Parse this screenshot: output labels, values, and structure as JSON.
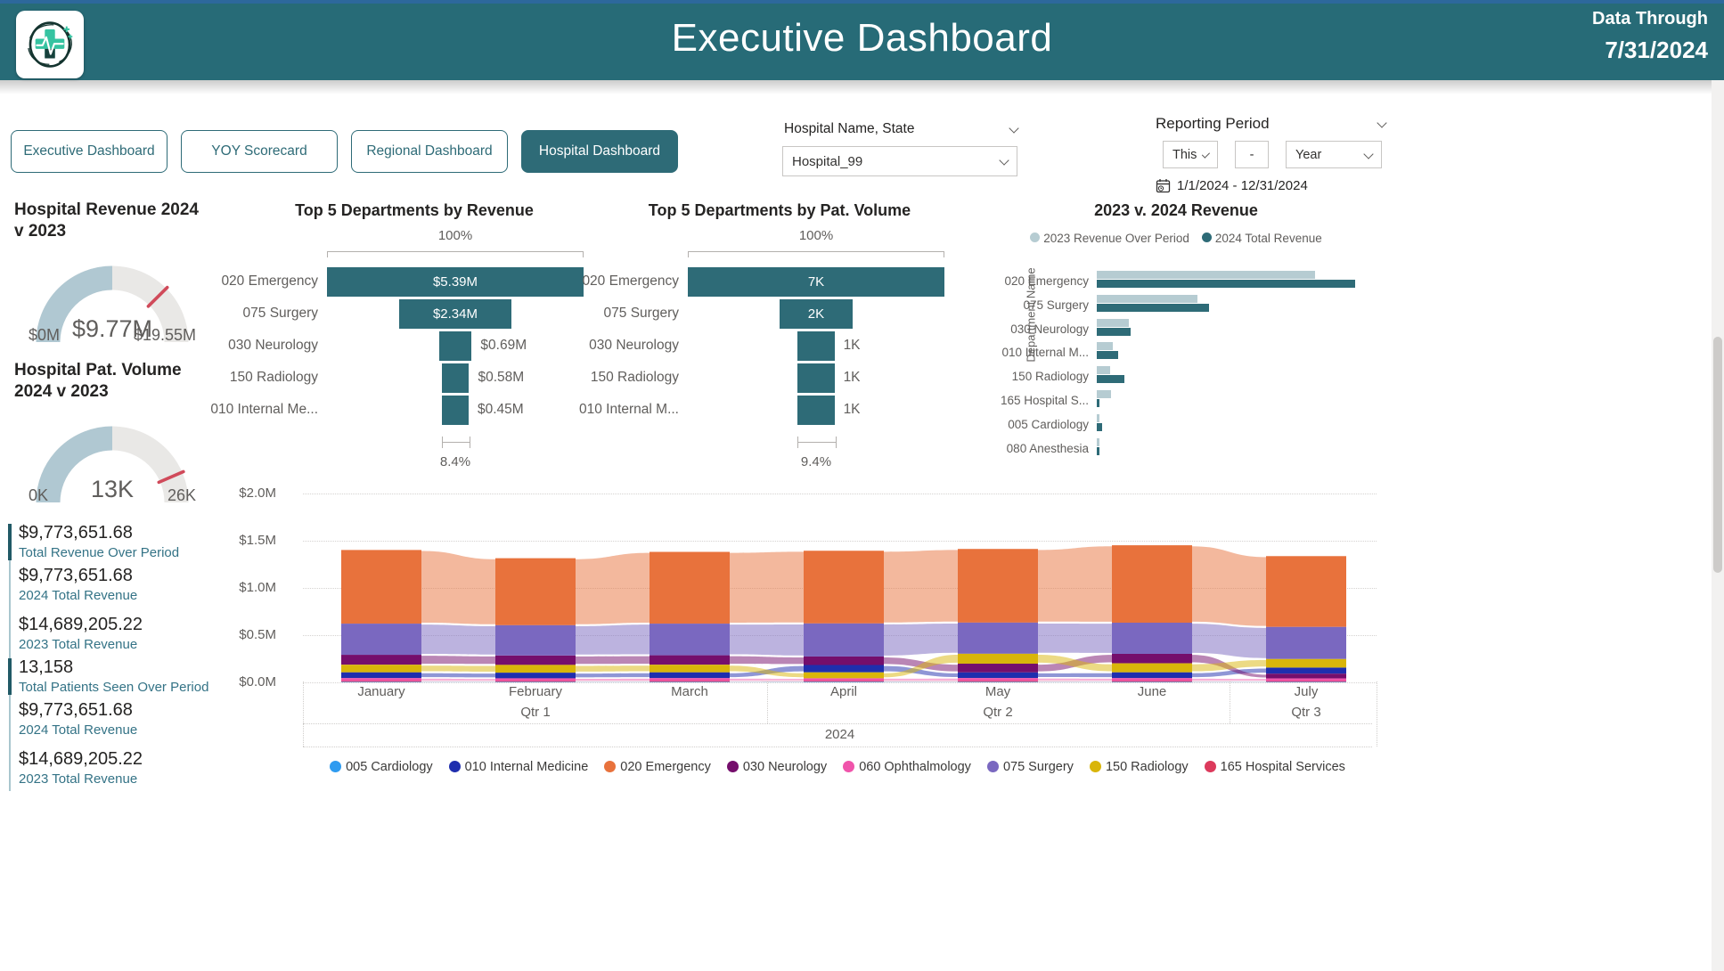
{
  "header": {
    "title": "Executive Dashboard",
    "data_through_label": "Data Through",
    "data_through_date": "7/31/2024"
  },
  "nav": {
    "tabs": [
      {
        "label": "Executive Dashboard",
        "active": false
      },
      {
        "label": "YOY Scorecard",
        "active": false
      },
      {
        "label": "Regional Dashboard",
        "active": false
      },
      {
        "label": "Hospital Dashboard",
        "active": true
      }
    ]
  },
  "filters": {
    "hospital": {
      "label": "Hospital Name, State",
      "value": "Hospital_99"
    },
    "reporting_period": {
      "label": "Reporting Period",
      "period_type": "This",
      "separator": "-",
      "period_unit": "Year",
      "date_range": "1/1/2024 - 12/31/2024"
    }
  },
  "kpis": [
    {
      "value": "$9,773,651.68",
      "label": "Total Revenue Over Period",
      "accent": true,
      "gap": false
    },
    {
      "value": "$9,773,651.68",
      "label": "2024 Total Revenue",
      "accent": false,
      "gap": false
    },
    {
      "value": "$14,689,205.22",
      "label": "2023 Total Revenue",
      "accent": false,
      "gap": true
    },
    {
      "value": "13,158",
      "label": "Total Patients Seen Over Period",
      "accent": true,
      "gap": false
    },
    {
      "value": "$9,773,651.68",
      "label": "2024 Total Revenue",
      "accent": false,
      "gap": false
    },
    {
      "value": "$14,689,205.22",
      "label": "2023 Total Revenue",
      "accent": false,
      "gap": true
    }
  ],
  "colors": {
    "header_teal": "#276b77",
    "teal": "#2e6b77",
    "light_blue_bar": "#b6ccd2",
    "gauge_fill": "#b0c8d2",
    "gauge_track": "#e9e8e6",
    "target_red": "#d04a5a",
    "kpi_label": "#347386",
    "axis_text": "#605e5c"
  },
  "chart_data": [
    {
      "type": "gauge",
      "title_lines": [
        "Hospital Revenue 2024",
        "v 2023"
      ],
      "value_label": "$9.77M",
      "min_label": "$0M",
      "max_label": "$19.55M",
      "fill_fraction": 0.4999,
      "target_fraction": 0.751
    },
    {
      "type": "gauge",
      "title_lines": [
        "Hospital Pat. Volume",
        "2024 v 2023"
      ],
      "value_label": "13K",
      "min_label": "0K",
      "max_label": "26K",
      "fill_fraction": 0.5,
      "target_fraction": 0.87
    },
    {
      "type": "funnel",
      "title": "Top 5 Departments by Revenue",
      "axis_max_label": "100%",
      "conversion_label": "8.4%",
      "rows": [
        {
          "label": "020 Emergency",
          "value_label": "$5.39M",
          "value": 5.39
        },
        {
          "label": "075 Surgery",
          "value_label": "$2.34M",
          "value": 2.34
        },
        {
          "label": "030 Neurology",
          "value_label": "$0.69M",
          "value": 0.69
        },
        {
          "label": "150 Radiology",
          "value_label": "$0.58M",
          "value": 0.58
        },
        {
          "label": "010 Internal Me...",
          "value_label": "$0.45M",
          "value": 0.45
        }
      ]
    },
    {
      "type": "funnel",
      "title": "Top 5 Departments by Pat. Volume",
      "axis_max_label": "100%",
      "conversion_label": "9.4%",
      "rows": [
        {
          "label": "020 Emergency",
          "value_label": "7K",
          "value": 7
        },
        {
          "label": "075 Surgery",
          "value_label": "2K",
          "value": 2
        },
        {
          "label": "030 Neurology",
          "value_label": "1K",
          "value": 1
        },
        {
          "label": "150 Radiology",
          "value_label": "1K",
          "value": 1
        },
        {
          "label": "010 Internal M...",
          "value_label": "1K",
          "value": 1
        }
      ]
    },
    {
      "type": "bar",
      "title": "2023 v. 2024 Revenue",
      "y_axis_label": "Department Name",
      "categories": [
        "020 Emergency",
        "075 Surgery",
        "030 Neurology",
        "010 Internal M...",
        "150 Radiology",
        "165 Hospital S...",
        "005 Cardiology",
        "080 Anesthesia"
      ],
      "series": [
        {
          "name": "2023 Revenue Over Period",
          "color": "#b6ccd2",
          "relative_values": [
            0.845,
            0.39,
            0.125,
            0.063,
            0.05,
            0.055,
            0.012,
            0.006
          ]
        },
        {
          "name": "2024 Total Revenue",
          "color": "#2e6b77",
          "relative_values": [
            1.0,
            0.435,
            0.13,
            0.082,
            0.107,
            0.012,
            0.022,
            0.003
          ]
        }
      ]
    },
    {
      "type": "area",
      "subtype": "ribbon",
      "months": [
        "January",
        "February",
        "March",
        "April",
        "May",
        "June",
        "July"
      ],
      "quarters": [
        {
          "label": "Qtr 1",
          "month_index": 1
        },
        {
          "label": "Qtr 2",
          "month_index": 4
        },
        {
          "label": "Qtr 3",
          "month_index": 6
        }
      ],
      "separators_after": [
        2,
        5
      ],
      "year": "2024",
      "y_ticks": [
        {
          "label": "$0.0M",
          "value": 0.0
        },
        {
          "label": "$0.5M",
          "value": 0.5
        },
        {
          "label": "$1.0M",
          "value": 1.0
        },
        {
          "label": "$1.5M",
          "value": 1.5
        },
        {
          "label": "$2.0M",
          "value": 2.0
        }
      ],
      "ylim": [
        0,
        2.0
      ],
      "series": [
        {
          "name": "005 Cardiology",
          "color": "#2e9bf0",
          "values": [
            0.006,
            0.006,
            0.006,
            0.007,
            0.006,
            0.006,
            0.006
          ]
        },
        {
          "name": "010 Internal Medicine",
          "color": "#1f2eae",
          "values": [
            0.062,
            0.06,
            0.062,
            0.078,
            0.06,
            0.062,
            0.065
          ]
        },
        {
          "name": "020 Emergency",
          "color": "#e8723c",
          "values": [
            0.78,
            0.71,
            0.76,
            0.77,
            0.78,
            0.82,
            0.75
          ]
        },
        {
          "name": "030 Neurology",
          "color": "#750e6c",
          "values": [
            0.105,
            0.1,
            0.1,
            0.09,
            0.092,
            0.1,
            0.05
          ]
        },
        {
          "name": "060 Ophthalmology",
          "color": "#f054ab",
          "values": [
            0.03,
            0.028,
            0.03,
            0.028,
            0.03,
            0.03,
            0.028
          ]
        },
        {
          "name": "075 Surgery",
          "color": "#7a68c0",
          "values": [
            0.33,
            0.32,
            0.335,
            0.35,
            0.33,
            0.33,
            0.34
          ]
        },
        {
          "name": "150 Radiology",
          "color": "#d9b50a",
          "values": [
            0.08,
            0.082,
            0.08,
            0.062,
            0.105,
            0.095,
            0.09
          ]
        },
        {
          "name": "165 Hospital Services",
          "color": "#dc3a5c",
          "values": [
            0.009,
            0.009,
            0.009,
            0.009,
            0.01,
            0.009,
            0.008
          ]
        }
      ]
    }
  ]
}
